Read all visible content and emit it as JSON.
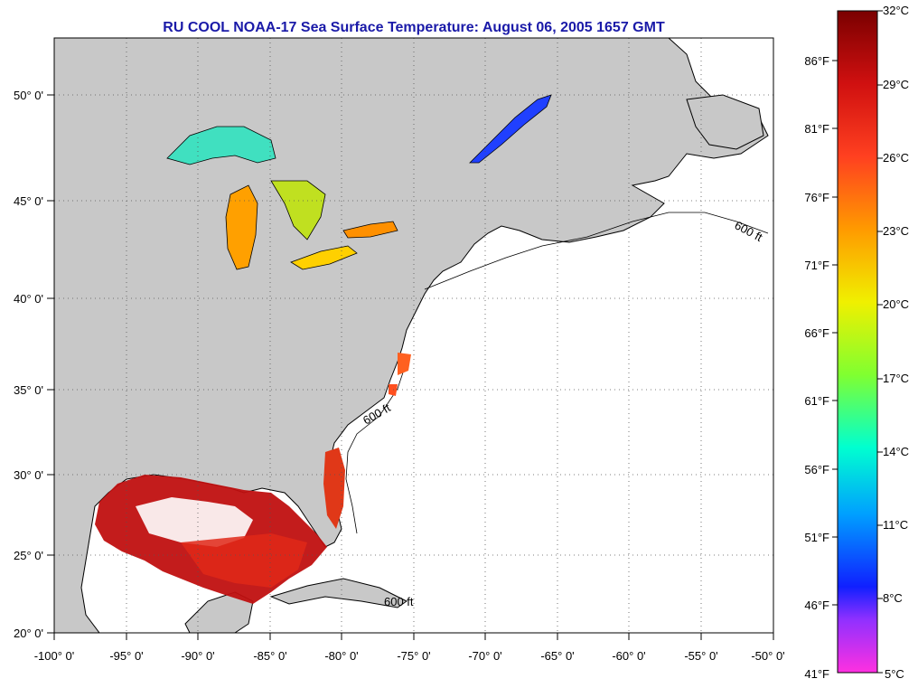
{
  "title": "RU COOL  NOAA-17  Sea Surface Temperature:  August 06, 2005 1657 GMT",
  "map": {
    "lon_ticks": [
      "-100° 0'",
      "-95° 0'",
      "-90° 0'",
      "-85° 0'",
      "-80° 0'",
      "-75° 0'",
      "-70° 0'",
      "-65° 0'",
      "-60° 0'",
      "-55° 0'",
      "-50° 0'"
    ],
    "lat_ticks": [
      "50° 0'",
      "45° 0'",
      "40° 0'",
      "35° 0'",
      "30° 0'",
      "25° 0'",
      "20° 0'"
    ],
    "contour_label": "600 ft",
    "land_color": "#c8c8c8",
    "ocean_color": "#ffffff",
    "grid": "dotted"
  },
  "colorbar": {
    "celsius": [
      "32°C",
      "29°C",
      "26°C",
      "23°C",
      "20°C",
      "17°C",
      "14°C",
      "11°C",
      "8°C",
      "5°C"
    ],
    "fahrenheit": [
      "86°F",
      "81°F",
      "76°F",
      "71°F",
      "66°F",
      "61°F",
      "56°F",
      "51°F",
      "46°F",
      "41°F"
    ],
    "colors": [
      "#7a0000",
      "#d01010",
      "#ff4020",
      "#ff9a00",
      "#f0f000",
      "#80ff30",
      "#00ffd0",
      "#00a0ff",
      "#1020ff",
      "#9030ff",
      "#ff30e0"
    ]
  }
}
